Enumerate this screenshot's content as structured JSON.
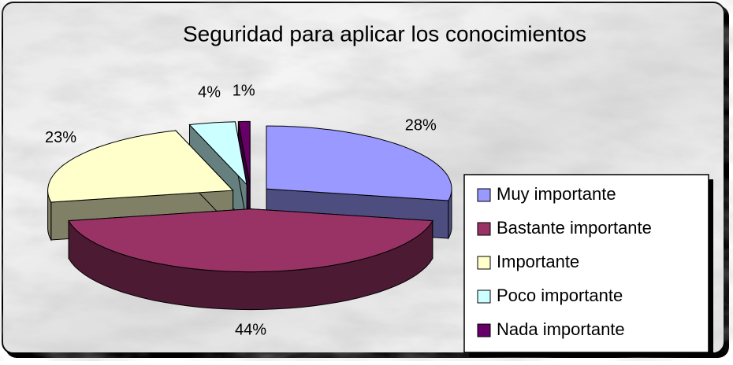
{
  "chart_data": {
    "type": "pie",
    "title": "Seguridad para aplicar los conocimientos",
    "categories": [
      "Muy importante",
      "Bastante importante",
      "Importante",
      "Poco importante",
      "Nada importante"
    ],
    "values": [
      28,
      44,
      23,
      4,
      1
    ],
    "value_labels": [
      "28%",
      "44%",
      "23%",
      "4%",
      "1%"
    ],
    "colors": [
      "#9999ff",
      "#993366",
      "#ffffcc",
      "#ccffff",
      "#660066"
    ],
    "legend": "right"
  }
}
